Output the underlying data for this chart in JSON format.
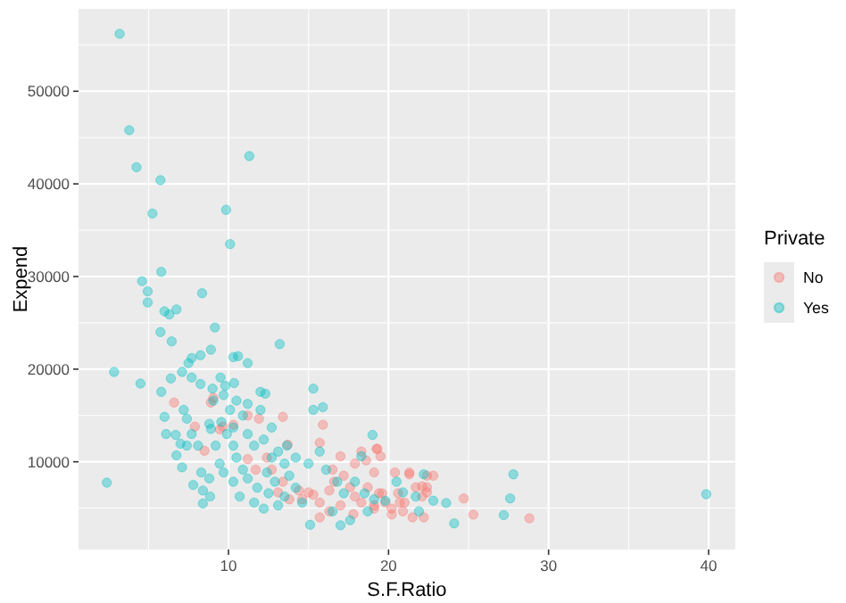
{
  "chart_data": {
    "type": "scatter",
    "xlabel": "S.F.Ratio",
    "ylabel": "Expend",
    "legend_title": "Private",
    "legend": "right",
    "grid": true,
    "marker": "circle",
    "xlim": [
      0.63,
      41.67
    ],
    "xticks": [
      10,
      20,
      30,
      40
    ],
    "ylim": [
      534,
      58885
    ],
    "yticks": [
      10000,
      20000,
      30000,
      40000,
      50000
    ],
    "series": [
      {
        "name": "No",
        "color": "#f8766d",
        "x": [
          6.6,
          7.9,
          8.9,
          9.05,
          8.5,
          9.65,
          9.45,
          10.3,
          11.2,
          11.9,
          13.4,
          13.7,
          12.4,
          11.2,
          11.7,
          12.7,
          15.9,
          15.7,
          15.0,
          14.4,
          15.3,
          14.6,
          15.7,
          16.3,
          16.6,
          17.2,
          17.6,
          17.9,
          18.3,
          18.7,
          19.1,
          19.4,
          19.8,
          20.2,
          20.6,
          16.3,
          17.0,
          17.8,
          19.1,
          15.7,
          13.8,
          13.4,
          13.1,
          17.9,
          18.3,
          19.3,
          21.3,
          21.7,
          22.1,
          16.5,
          17.0,
          19.25,
          19.5,
          18.6,
          20.4,
          21.3,
          22.4,
          22.8,
          22.1,
          22.4,
          24.7,
          25.3,
          28.8,
          22.2,
          20.9,
          20.2,
          19.1,
          21.0,
          22.4,
          19.6,
          20.7,
          21.5
        ],
        "values": [
          16400,
          13800,
          16400,
          16900,
          11200,
          13800,
          13500,
          14000,
          15000,
          14650,
          14850,
          11850,
          10450,
          10300,
          9150,
          9150,
          14000,
          12050,
          6700,
          6900,
          6450,
          5950,
          5600,
          6900,
          7850,
          8500,
          7250,
          6250,
          5600,
          7250,
          8850,
          6600,
          5600,
          4950,
          6600,
          4650,
          5300,
          4350,
          4950,
          4000,
          5950,
          7850,
          6700,
          9800,
          11100,
          11400,
          8850,
          7250,
          6250,
          9150,
          10600,
          11400,
          10600,
          10150,
          8850,
          8650,
          8500,
          8500,
          7350,
          7250,
          6050,
          4300,
          3900,
          4000,
          4650,
          4300,
          5300,
          5600,
          6700,
          6600,
          5600,
          4000
        ]
      },
      {
        "name": "Yes",
        "color": "#00bfc4",
        "x": [
          3.2,
          3.8,
          4.25,
          5.75,
          5.25,
          11.3,
          9.85,
          10.1,
          5.8,
          4.6,
          4.95,
          8.35,
          4.95,
          6.0,
          6.3,
          6.75,
          5.75,
          6.45,
          9.15,
          13.2,
          8.9,
          8.25,
          7.7,
          7.5,
          10.3,
          10.6,
          11.2,
          2.85,
          7.1,
          6.4,
          7.7,
          9.5,
          4.5,
          5.8,
          8.25,
          9.0,
          9.8,
          10.35,
          15.3,
          12.0,
          12.3,
          6.0,
          7.2,
          7.4,
          9.05,
          8.8,
          10.5,
          15.3,
          15.9,
          6.1,
          6.7,
          7.7,
          7.0,
          7.4,
          8.1,
          6.75,
          7.1,
          2.4,
          7.8,
          8.3,
          8.4,
          8.85,
          8.4,
          8.8,
          8.9,
          9.2,
          10.1,
          10.3,
          10.9,
          11.2,
          11.6,
          12.2,
          12.7,
          13.1,
          13.5,
          10.5,
          10.9,
          11.2,
          11.8,
          12.4,
          12.9,
          13.8,
          14.2,
          10.3,
          10.7,
          11.6,
          12.2,
          13.1,
          14.6,
          15.0,
          15.7,
          16.1,
          16.8,
          17.2,
          17.9,
          15.1,
          17.0,
          17.6,
          18.7,
          18.5,
          19.1,
          16.5,
          19.0,
          10.3,
          11.2,
          12.0,
          9.9,
          9.45,
          9.7,
          12.7,
          13.65,
          14.2,
          12.5,
          13.5,
          9.55,
          9.7,
          18.3,
          20.5,
          22.2,
          27.8,
          27.6,
          27.2,
          24.1,
          23.6,
          21.9,
          20.9,
          39.85,
          19.8,
          21.7,
          22.8
        ],
        "values": [
          56200,
          45800,
          41800,
          40400,
          36800,
          43000,
          37200,
          33500,
          30500,
          29500,
          28400,
          28200,
          27200,
          26250,
          25900,
          26450,
          24000,
          23000,
          24500,
          22700,
          22100,
          21500,
          21200,
          20650,
          21300,
          21400,
          20650,
          19700,
          19700,
          19000,
          19100,
          19100,
          18450,
          17550,
          18400,
          17900,
          18200,
          18500,
          17900,
          17550,
          17350,
          14850,
          15600,
          14650,
          16600,
          14100,
          16600,
          15600,
          15900,
          13000,
          12900,
          13000,
          11950,
          11750,
          11750,
          10700,
          9400,
          7750,
          7500,
          8850,
          6900,
          6250,
          5500,
          8200,
          13550,
          11750,
          15600,
          13700,
          15000,
          13000,
          11750,
          12400,
          13700,
          11100,
          9800,
          10450,
          9150,
          8200,
          7200,
          8850,
          7850,
          8500,
          7200,
          7850,
          6250,
          5600,
          4950,
          5300,
          5600,
          9800,
          11100,
          9150,
          7850,
          6600,
          7850,
          3200,
          3150,
          3700,
          4650,
          6600,
          5950,
          4650,
          12900,
          11750,
          16250,
          15600,
          13000,
          9800,
          8850,
          10450,
          11750,
          10450,
          6600,
          6250,
          14300,
          17200,
          10600,
          7850,
          8650,
          8650,
          6050,
          4250,
          3350,
          5550,
          4650,
          6700,
          6500,
          5800,
          6250,
          5800
        ]
      }
    ]
  }
}
